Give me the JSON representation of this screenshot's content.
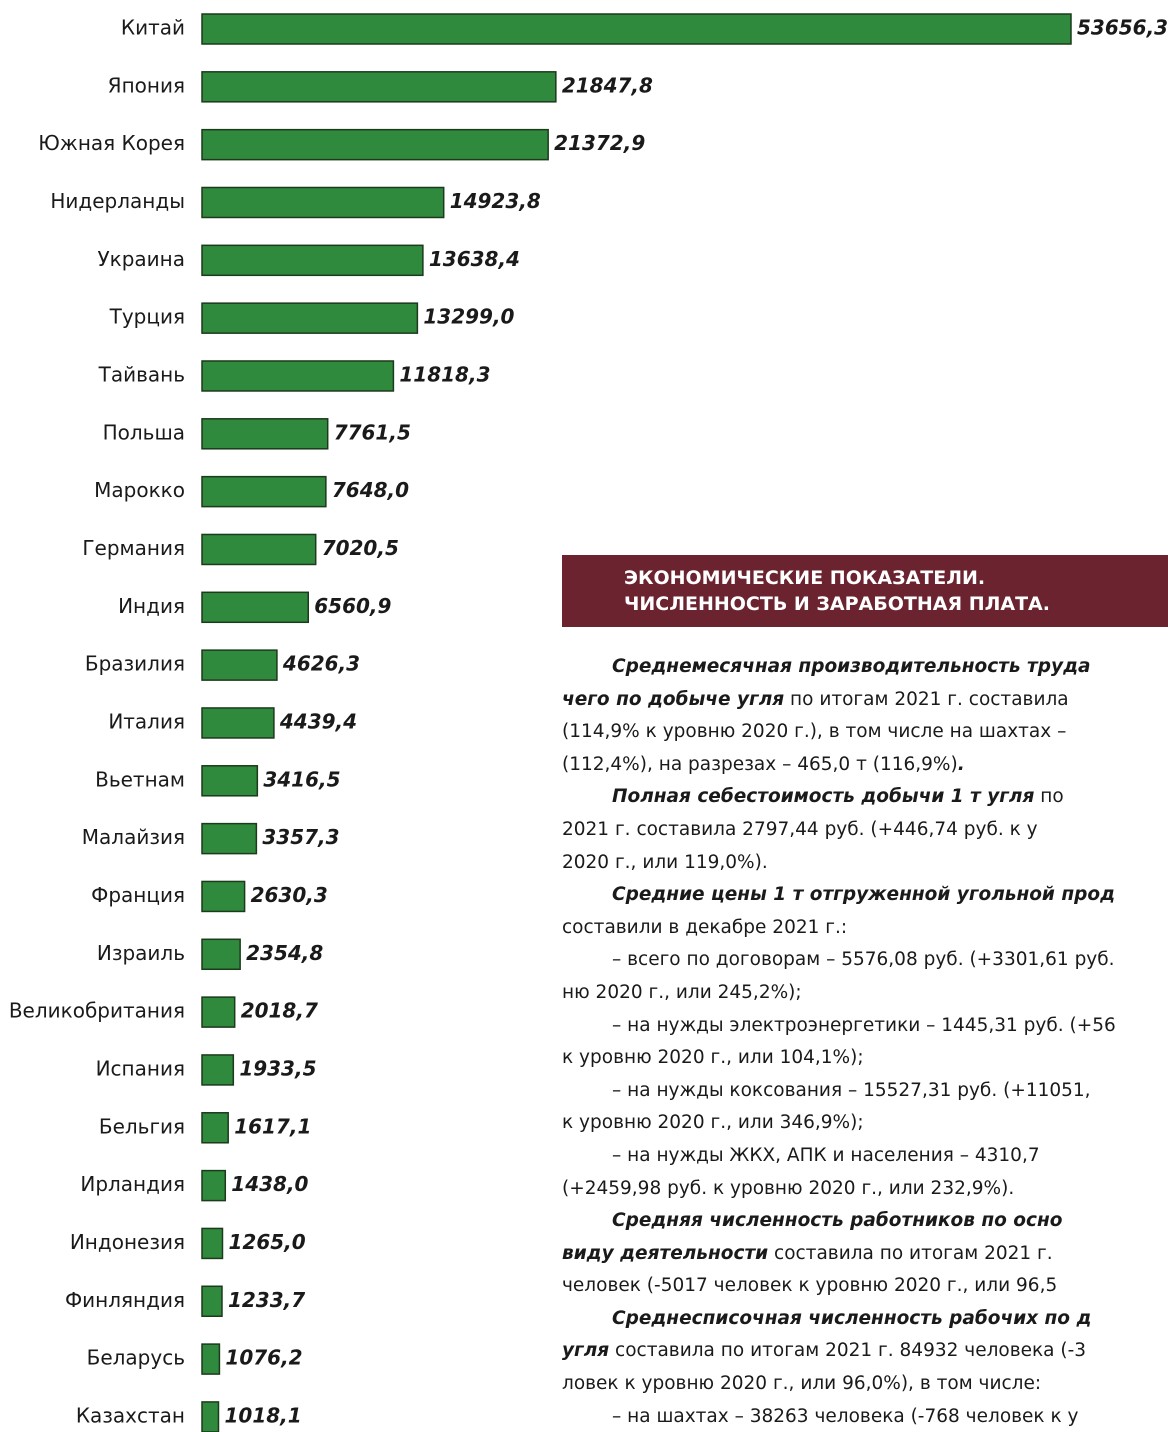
{
  "chart_data": {
    "type": "bar",
    "orientation": "horizontal",
    "color": "#2f8a3e",
    "categories": [
      "Китай",
      "Япония",
      "Южная Корея",
      "Нидерланды",
      "Украина",
      "Турция",
      "Тайвань",
      "Польша",
      "Марокко",
      "Германия",
      "Индия",
      "Бразилия",
      "Италия",
      "Вьетнам",
      "Малайзия",
      "Франция",
      "Израиль",
      "Великобритания",
      "Испания",
      "Бельгия",
      "Ирландия",
      "Индонезия",
      "Финляндия",
      "Беларусь",
      "Казахстан"
    ],
    "values": [
      53656.3,
      21847.8,
      21372.9,
      14923.8,
      13638.4,
      13299.0,
      11818.3,
      7761.5,
      7648.0,
      7020.5,
      6560.9,
      4626.3,
      4439.4,
      3416.5,
      3357.3,
      2630.3,
      2354.8,
      2018.7,
      1933.5,
      1617.1,
      1438.0,
      1265.0,
      1233.7,
      1076.2,
      1018.1
    ],
    "value_labels": [
      "53656,3",
      "21847,8",
      "21372,9",
      "14923,8",
      "13638,4",
      "13299,0",
      "11818,3",
      "7761,5",
      "7648,0",
      "7020,5",
      "6560,9",
      "4626,3",
      "4439,4",
      "3416,5",
      "3357,3",
      "2630,3",
      "2354,8",
      "2018,7",
      "1933,5",
      "1617,1",
      "1438,0",
      "1265,0",
      "1233,7",
      "1076,2",
      "1018,1"
    ]
  },
  "section": {
    "heading": [
      "ЭКОНОМИЧЕСКИЕ ПОКАЗАТЕЛИ.",
      "ЧИСЛЕННОСТЬ И ЗАРАБОТНАЯ ПЛАТА."
    ],
    "lines": [
      {
        "indent": true,
        "parts": [
          {
            "text": "Среднемесячная производительность труда",
            "bold": true
          }
        ]
      },
      {
        "parts": [
          {
            "text": "чего по добыче угля",
            "bold": true
          },
          {
            "text": " по итогам 2021 г. составила"
          }
        ]
      },
      {
        "parts": [
          {
            "text": "(114,9% к уровню 2020 г.), в том числе на шахтах –"
          }
        ]
      },
      {
        "parts": [
          {
            "text": "(112,4%), на разрезах – 465,0 т (116,9%)"
          },
          {
            "text": ".",
            "bold": true
          }
        ]
      },
      {
        "indent": true,
        "parts": [
          {
            "text": "Полная себестоимость добычи 1 т угля",
            "bold": true
          },
          {
            "text": " по"
          }
        ]
      },
      {
        "parts": [
          {
            "text": "2021 г. составила 2797,44 руб. (+446,74 руб. к у"
          }
        ]
      },
      {
        "parts": [
          {
            "text": "2020 г., или 119,0%)."
          }
        ]
      },
      {
        "indent": true,
        "parts": [
          {
            "text": "Средние цены 1 т отгруженной угольной прод",
            "bold": true
          }
        ]
      },
      {
        "parts": [
          {
            "text": "составили в декабре 2021 г.:"
          }
        ]
      },
      {
        "indent": true,
        "parts": [
          {
            "text": "– всего по договорам – 5576,08 руб. (+3301,61 руб."
          }
        ]
      },
      {
        "parts": [
          {
            "text": "ню 2020 г., или 245,2%);"
          }
        ]
      },
      {
        "indent": true,
        "parts": [
          {
            "text": "– на нужды электроэнергетики – 1445,31 руб. (+56"
          }
        ]
      },
      {
        "parts": [
          {
            "text": "к уровню 2020 г., или 104,1%);"
          }
        ]
      },
      {
        "indent": true,
        "parts": [
          {
            "text": "– на нужды коксования – 15527,31 руб. (+11051,"
          }
        ]
      },
      {
        "parts": [
          {
            "text": "к уровню 2020 г., или 346,9%);"
          }
        ]
      },
      {
        "indent": true,
        "parts": [
          {
            "text": "– на нужды ЖКХ, АПК и населения – 4310,7"
          }
        ]
      },
      {
        "parts": [
          {
            "text": "(+2459,98 руб. к уровню 2020 г., или 232,9%)."
          }
        ]
      },
      {
        "indent": true,
        "parts": [
          {
            "text": "Средняя численность работников по осно",
            "bold": true
          }
        ]
      },
      {
        "parts": [
          {
            "text": "виду деятельности",
            "bold": true
          },
          {
            "text": " составила по итогам 2021 г."
          }
        ]
      },
      {
        "parts": [
          {
            "text": "человек (-5017 человек к уровню 2020 г., или 96,5"
          }
        ]
      },
      {
        "indent": true,
        "parts": [
          {
            "text": "Среднесписочная численность рабочих по д",
            "bold": true
          }
        ]
      },
      {
        "parts": [
          {
            "text": "угля",
            "bold": true
          },
          {
            "text": " составила по итогам 2021 г. 84932 человека (-3"
          }
        ]
      },
      {
        "parts": [
          {
            "text": "ловек к уровню 2020 г., или 96,0%), в том числе:"
          }
        ]
      },
      {
        "indent": true,
        "parts": [
          {
            "text": "– на шахтах – 38263 человека (-768 человек к у"
          }
        ]
      }
    ]
  }
}
